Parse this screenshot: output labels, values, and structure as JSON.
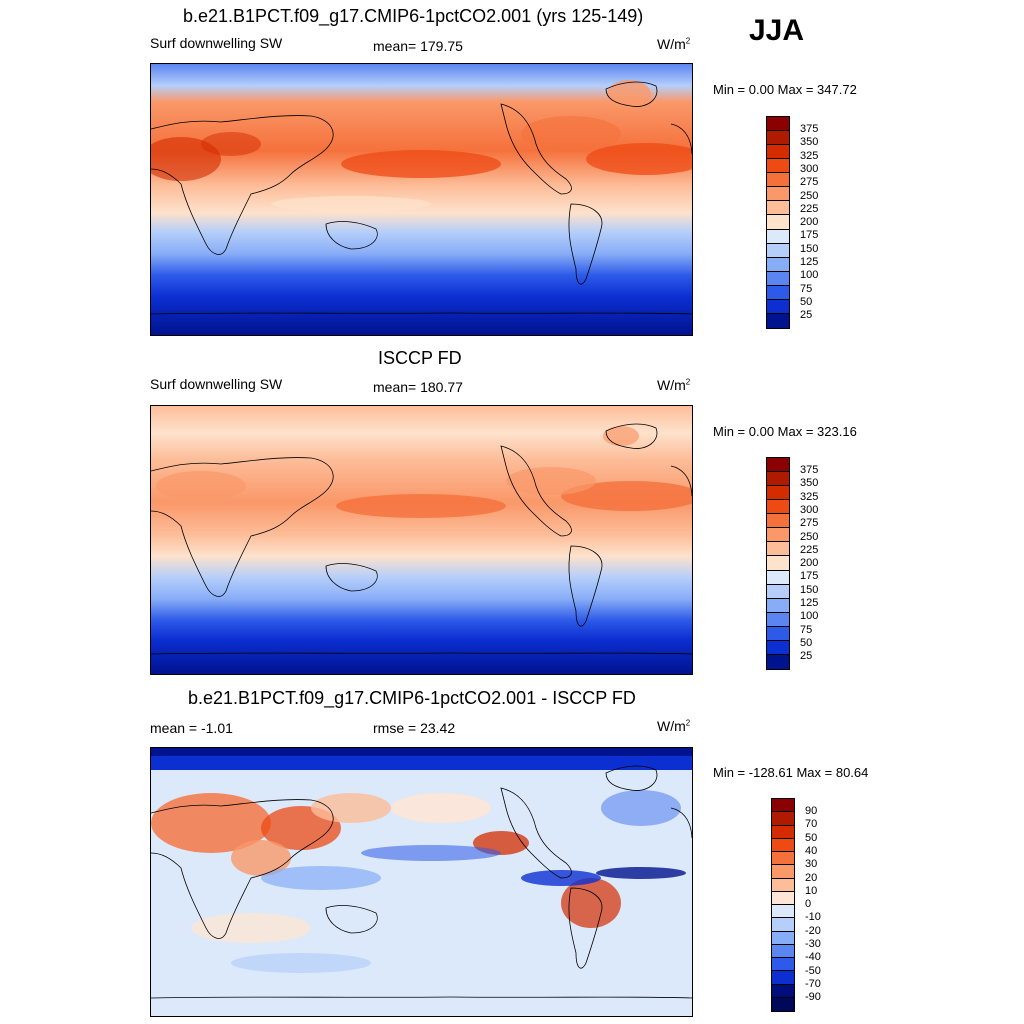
{
  "season": "JJA",
  "panels": [
    {
      "id": "model",
      "title": "b.e21.B1PCT.f09_g17.CMIP6-1pctCO2.001 (yrs 125-149)",
      "left_label": "Surf downwelling SW",
      "center_label": "mean= 179.75",
      "units": "W/m",
      "units_sup": "2",
      "minmax": "Min =   0.00 Max = 347.72",
      "colorbar_labels": [
        "375",
        "350",
        "325",
        "300",
        "275",
        "250",
        "225",
        "200",
        "175",
        "150",
        "125",
        "100",
        "75",
        "50",
        "25"
      ]
    },
    {
      "id": "obs",
      "title": "ISCCP FD",
      "left_label": "Surf downwelling SW",
      "center_label": "mean= 180.77",
      "units": "W/m",
      "units_sup": "2",
      "minmax": "Min =   0.00 Max = 323.16",
      "colorbar_labels": [
        "375",
        "350",
        "325",
        "300",
        "275",
        "250",
        "225",
        "200",
        "175",
        "150",
        "125",
        "100",
        "75",
        "50",
        "25"
      ]
    },
    {
      "id": "diff",
      "title": "b.e21.B1PCT.f09_g17.CMIP6-1pctCO2.001 - ISCCP FD",
      "left_label": "mean =  -1.01",
      "center_label": "rmse =  23.42",
      "units": "W/m",
      "units_sup": "2",
      "minmax": "Min = -128.61 Max =  80.64",
      "colorbar_labels": [
        "90",
        "70",
        "50",
        "40",
        "30",
        "20",
        "10",
        "0",
        "-10",
        "-20",
        "-30",
        "-40",
        "-50",
        "-70",
        "-90"
      ]
    }
  ],
  "colors": {
    "abs_scale": [
      "#8b0000",
      "#b01a00",
      "#d42c00",
      "#ee4a14",
      "#f5713c",
      "#fa9869",
      "#fdbd99",
      "#fde2cc",
      "#dbe9fb",
      "#b5cefa",
      "#88adf7",
      "#5b86f2",
      "#2d5ae8",
      "#0c2fd2",
      "#00138f"
    ],
    "diff_scale": [
      "#8b0000",
      "#b01a00",
      "#d42c00",
      "#ee4a14",
      "#f5713c",
      "#fa9869",
      "#fdbd99",
      "#fde6d6",
      "#dbe9fb",
      "#b5cefa",
      "#88adf7",
      "#5b86f2",
      "#2d5ae8",
      "#0c2fd2",
      "#000d7a",
      "#00085a"
    ]
  }
}
